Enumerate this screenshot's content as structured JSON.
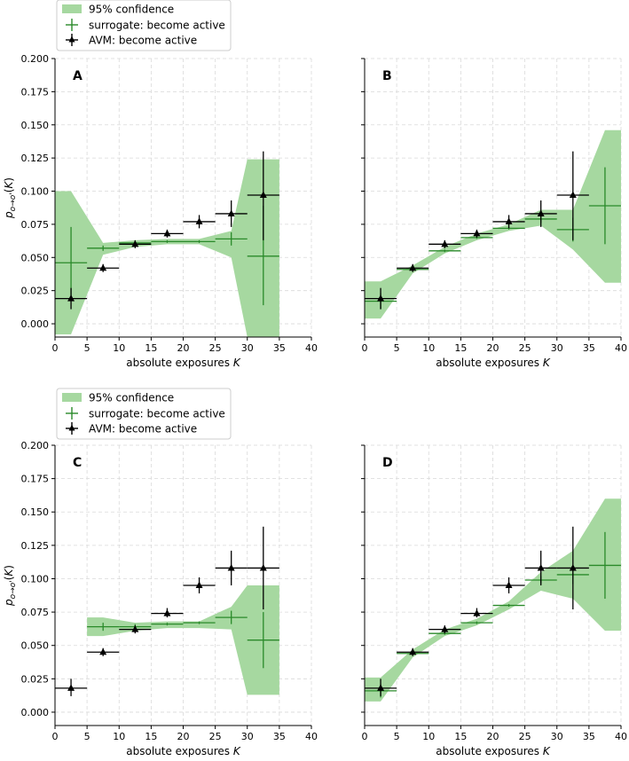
{
  "legend": {
    "confidence_label": "95% confidence",
    "surrogate_label": "surrogate: become active",
    "avm_label": "AVM: become active"
  },
  "colors": {
    "band": "#a6d8a0",
    "surrogate": "#2a8a2a",
    "avm": "#000000",
    "grid": "#d9d9d9"
  },
  "chart_data": [
    {
      "id": "A",
      "panel_label": "A",
      "type": "scatter",
      "xlabel": "absolute exposures K",
      "ylabel": "p_{o→o'}(K)",
      "xlim": [
        0,
        40
      ],
      "ylim": [
        -0.01,
        0.2
      ],
      "xticks": [
        0,
        5,
        10,
        15,
        20,
        25,
        30,
        35,
        40
      ],
      "yticks": [
        0.0,
        0.025,
        0.05,
        0.075,
        0.1,
        0.125,
        0.15,
        0.175,
        0.2
      ],
      "ytick_labels": [
        "0.000",
        "0.025",
        "0.050",
        "0.075",
        "0.100",
        "0.125",
        "0.150",
        "0.175",
        "0.200"
      ],
      "show_y_ticklabels": true,
      "has_legend": true,
      "band": [
        {
          "x": 0,
          "lo": -0.008,
          "hi": 0.1
        },
        {
          "x": 2.5,
          "lo": -0.008,
          "hi": 0.1
        },
        {
          "x": 7.5,
          "lo": 0.052,
          "hi": 0.061
        },
        {
          "x": 12.5,
          "lo": 0.058,
          "hi": 0.063
        },
        {
          "x": 17.5,
          "lo": 0.06,
          "hi": 0.064
        },
        {
          "x": 22.5,
          "lo": 0.06,
          "hi": 0.064
        },
        {
          "x": 27.5,
          "lo": 0.05,
          "hi": 0.07
        },
        {
          "x": 30,
          "lo": -0.01,
          "hi": 0.124
        },
        {
          "x": 35,
          "lo": -0.01,
          "hi": 0.124
        }
      ],
      "surrogate": [
        {
          "x": 2.5,
          "y": 0.046,
          "xerr": 2.5,
          "lo": 0.018,
          "hi": 0.073
        },
        {
          "x": 7.5,
          "y": 0.057,
          "xerr": 2.5,
          "lo": 0.055,
          "hi": 0.059
        },
        {
          "x": 12.5,
          "y": 0.061,
          "xerr": 2.5,
          "lo": 0.06,
          "hi": 0.062
        },
        {
          "x": 17.5,
          "y": 0.062,
          "xerr": 2.5,
          "lo": 0.061,
          "hi": 0.063
        },
        {
          "x": 22.5,
          "y": 0.062,
          "xerr": 2.5,
          "lo": 0.061,
          "hi": 0.063
        },
        {
          "x": 27.5,
          "y": 0.064,
          "xerr": 2.5,
          "lo": 0.059,
          "hi": 0.069
        },
        {
          "x": 32.5,
          "y": 0.051,
          "xerr": 2.5,
          "lo": 0.014,
          "hi": 0.089
        }
      ],
      "avm": [
        {
          "x": 2.5,
          "y": 0.019,
          "xerr": 2.5,
          "lo": 0.011,
          "hi": 0.027
        },
        {
          "x": 7.5,
          "y": 0.042,
          "xerr": 2.5,
          "lo": 0.039,
          "hi": 0.045
        },
        {
          "x": 12.5,
          "y": 0.06,
          "xerr": 2.5,
          "lo": 0.057,
          "hi": 0.063
        },
        {
          "x": 17.5,
          "y": 0.068,
          "xerr": 2.5,
          "lo": 0.065,
          "hi": 0.071
        },
        {
          "x": 22.5,
          "y": 0.077,
          "xerr": 2.5,
          "lo": 0.072,
          "hi": 0.082
        },
        {
          "x": 27.5,
          "y": 0.083,
          "xerr": 2.5,
          "lo": 0.073,
          "hi": 0.093
        },
        {
          "x": 32.5,
          "y": 0.097,
          "xerr": 2.5,
          "lo": 0.063,
          "hi": 0.13
        }
      ]
    },
    {
      "id": "B",
      "panel_label": "B",
      "type": "scatter",
      "xlabel": "absolute exposures K",
      "ylabel": "",
      "xlim": [
        0,
        40
      ],
      "ylim": [
        -0.01,
        0.2
      ],
      "xticks": [
        0,
        5,
        10,
        15,
        20,
        25,
        30,
        35,
        40
      ],
      "yticks": [
        0.0,
        0.025,
        0.05,
        0.075,
        0.1,
        0.125,
        0.15,
        0.175,
        0.2
      ],
      "ytick_labels": [],
      "show_y_ticklabels": false,
      "has_legend": false,
      "band": [
        {
          "x": 0,
          "lo": 0.004,
          "hi": 0.032
        },
        {
          "x": 2.5,
          "lo": 0.004,
          "hi": 0.032
        },
        {
          "x": 7.5,
          "lo": 0.038,
          "hi": 0.044
        },
        {
          "x": 12.5,
          "lo": 0.053,
          "hi": 0.058
        },
        {
          "x": 17.5,
          "lo": 0.063,
          "hi": 0.068
        },
        {
          "x": 22.5,
          "lo": 0.07,
          "hi": 0.075
        },
        {
          "x": 27.5,
          "lo": 0.074,
          "hi": 0.086
        },
        {
          "x": 32.5,
          "lo": 0.056,
          "hi": 0.086
        },
        {
          "x": 37.5,
          "lo": 0.031,
          "hi": 0.146
        },
        {
          "x": 40,
          "lo": 0.031,
          "hi": 0.146
        }
      ],
      "surrogate": [
        {
          "x": 2.5,
          "y": 0.017,
          "xerr": 2.5,
          "lo": 0.011,
          "hi": 0.023
        },
        {
          "x": 7.5,
          "y": 0.041,
          "xerr": 2.5,
          "lo": 0.04,
          "hi": 0.042
        },
        {
          "x": 12.5,
          "y": 0.055,
          "xerr": 2.5,
          "lo": 0.054,
          "hi": 0.056
        },
        {
          "x": 17.5,
          "y": 0.065,
          "xerr": 2.5,
          "lo": 0.064,
          "hi": 0.066
        },
        {
          "x": 22.5,
          "y": 0.072,
          "xerr": 2.5,
          "lo": 0.071,
          "hi": 0.073
        },
        {
          "x": 27.5,
          "y": 0.079,
          "xerr": 2.5,
          "lo": 0.076,
          "hi": 0.082
        },
        {
          "x": 32.5,
          "y": 0.071,
          "xerr": 2.5,
          "lo": 0.062,
          "hi": 0.08
        },
        {
          "x": 37.5,
          "y": 0.089,
          "xerr": 2.5,
          "lo": 0.06,
          "hi": 0.118
        }
      ],
      "avm": [
        {
          "x": 2.5,
          "y": 0.019,
          "xerr": 2.5,
          "lo": 0.011,
          "hi": 0.027
        },
        {
          "x": 7.5,
          "y": 0.042,
          "xerr": 2.5,
          "lo": 0.039,
          "hi": 0.045
        },
        {
          "x": 12.5,
          "y": 0.06,
          "xerr": 2.5,
          "lo": 0.057,
          "hi": 0.063
        },
        {
          "x": 17.5,
          "y": 0.068,
          "xerr": 2.5,
          "lo": 0.065,
          "hi": 0.071
        },
        {
          "x": 22.5,
          "y": 0.077,
          "xerr": 2.5,
          "lo": 0.072,
          "hi": 0.082
        },
        {
          "x": 27.5,
          "y": 0.083,
          "xerr": 2.5,
          "lo": 0.073,
          "hi": 0.093
        },
        {
          "x": 32.5,
          "y": 0.097,
          "xerr": 2.5,
          "lo": 0.063,
          "hi": 0.13
        }
      ]
    },
    {
      "id": "C",
      "panel_label": "C",
      "type": "scatter",
      "xlabel": "absolute exposures K",
      "ylabel": "p_{o→o'}(K)",
      "xlim": [
        0,
        40
      ],
      "ylim": [
        -0.01,
        0.2
      ],
      "xticks": [
        0,
        5,
        10,
        15,
        20,
        25,
        30,
        35,
        40
      ],
      "yticks": [
        0.0,
        0.025,
        0.05,
        0.075,
        0.1,
        0.125,
        0.15,
        0.175,
        0.2
      ],
      "ytick_labels": [
        "0.000",
        "0.025",
        "0.050",
        "0.075",
        "0.100",
        "0.125",
        "0.150",
        "0.175",
        "0.200"
      ],
      "show_y_ticklabels": true,
      "has_legend": true,
      "band": [
        {
          "x": 5,
          "lo": 0.057,
          "hi": 0.071
        },
        {
          "x": 7.5,
          "lo": 0.057,
          "hi": 0.071
        },
        {
          "x": 12.5,
          "lo": 0.061,
          "hi": 0.067
        },
        {
          "x": 17.5,
          "lo": 0.063,
          "hi": 0.068
        },
        {
          "x": 22.5,
          "lo": 0.063,
          "hi": 0.068
        },
        {
          "x": 27.5,
          "lo": 0.062,
          "hi": 0.079
        },
        {
          "x": 30,
          "lo": 0.013,
          "hi": 0.095
        },
        {
          "x": 35,
          "lo": 0.013,
          "hi": 0.095
        }
      ],
      "surrogate": [
        {
          "x": 7.5,
          "y": 0.064,
          "xerr": 2.5,
          "lo": 0.061,
          "hi": 0.067
        },
        {
          "x": 12.5,
          "y": 0.064,
          "xerr": 2.5,
          "lo": 0.062,
          "hi": 0.066
        },
        {
          "x": 17.5,
          "y": 0.066,
          "xerr": 2.5,
          "lo": 0.065,
          "hi": 0.067
        },
        {
          "x": 22.5,
          "y": 0.067,
          "xerr": 2.5,
          "lo": 0.066,
          "hi": 0.068
        },
        {
          "x": 27.5,
          "y": 0.071,
          "xerr": 2.5,
          "lo": 0.066,
          "hi": 0.076
        },
        {
          "x": 32.5,
          "y": 0.054,
          "xerr": 2.5,
          "lo": 0.033,
          "hi": 0.075
        }
      ],
      "avm": [
        {
          "x": 2.5,
          "y": 0.018,
          "xerr": 2.5,
          "lo": 0.012,
          "hi": 0.025
        },
        {
          "x": 7.5,
          "y": 0.045,
          "xerr": 2.5,
          "lo": 0.042,
          "hi": 0.048
        },
        {
          "x": 12.5,
          "y": 0.062,
          "xerr": 2.5,
          "lo": 0.059,
          "hi": 0.065
        },
        {
          "x": 17.5,
          "y": 0.074,
          "xerr": 2.5,
          "lo": 0.071,
          "hi": 0.078
        },
        {
          "x": 22.5,
          "y": 0.095,
          "xerr": 2.5,
          "lo": 0.089,
          "hi": 0.101
        },
        {
          "x": 27.5,
          "y": 0.108,
          "xerr": 2.5,
          "lo": 0.095,
          "hi": 0.121
        },
        {
          "x": 32.5,
          "y": 0.108,
          "xerr": 2.5,
          "lo": 0.077,
          "hi": 0.139
        }
      ]
    },
    {
      "id": "D",
      "panel_label": "D",
      "type": "scatter",
      "xlabel": "absolute exposures K",
      "ylabel": "",
      "xlim": [
        0,
        40
      ],
      "ylim": [
        -0.01,
        0.2
      ],
      "xticks": [
        0,
        5,
        10,
        15,
        20,
        25,
        30,
        35,
        40
      ],
      "yticks": [
        0.0,
        0.025,
        0.05,
        0.075,
        0.1,
        0.125,
        0.15,
        0.175,
        0.2
      ],
      "ytick_labels": [],
      "show_y_ticklabels": false,
      "has_legend": false,
      "band": [
        {
          "x": 0,
          "lo": 0.008,
          "hi": 0.026
        },
        {
          "x": 2.5,
          "lo": 0.008,
          "hi": 0.026
        },
        {
          "x": 7.5,
          "lo": 0.041,
          "hi": 0.047
        },
        {
          "x": 12.5,
          "lo": 0.057,
          "hi": 0.062
        },
        {
          "x": 17.5,
          "lo": 0.065,
          "hi": 0.07
        },
        {
          "x": 22.5,
          "lo": 0.077,
          "hi": 0.083
        },
        {
          "x": 27.5,
          "lo": 0.091,
          "hi": 0.105
        },
        {
          "x": 32.5,
          "lo": 0.085,
          "hi": 0.121
        },
        {
          "x": 37.5,
          "lo": 0.061,
          "hi": 0.16
        },
        {
          "x": 40,
          "lo": 0.061,
          "hi": 0.16
        }
      ],
      "surrogate": [
        {
          "x": 2.5,
          "y": 0.016,
          "xerr": 2.5,
          "lo": 0.011,
          "hi": 0.021
        },
        {
          "x": 7.5,
          "y": 0.044,
          "xerr": 2.5,
          "lo": 0.043,
          "hi": 0.045
        },
        {
          "x": 12.5,
          "y": 0.059,
          "xerr": 2.5,
          "lo": 0.058,
          "hi": 0.06
        },
        {
          "x": 17.5,
          "y": 0.067,
          "xerr": 2.5,
          "lo": 0.066,
          "hi": 0.068
        },
        {
          "x": 22.5,
          "y": 0.08,
          "xerr": 2.5,
          "lo": 0.079,
          "hi": 0.081
        },
        {
          "x": 27.5,
          "y": 0.099,
          "xerr": 2.5,
          "lo": 0.096,
          "hi": 0.102
        },
        {
          "x": 32.5,
          "y": 0.103,
          "xerr": 2.5,
          "lo": 0.096,
          "hi": 0.11
        },
        {
          "x": 37.5,
          "y": 0.11,
          "xerr": 2.5,
          "lo": 0.085,
          "hi": 0.135
        }
      ],
      "avm": [
        {
          "x": 2.5,
          "y": 0.018,
          "xerr": 2.5,
          "lo": 0.012,
          "hi": 0.025
        },
        {
          "x": 7.5,
          "y": 0.045,
          "xerr": 2.5,
          "lo": 0.042,
          "hi": 0.048
        },
        {
          "x": 12.5,
          "y": 0.062,
          "xerr": 2.5,
          "lo": 0.059,
          "hi": 0.065
        },
        {
          "x": 17.5,
          "y": 0.074,
          "xerr": 2.5,
          "lo": 0.071,
          "hi": 0.078
        },
        {
          "x": 22.5,
          "y": 0.095,
          "xerr": 2.5,
          "lo": 0.089,
          "hi": 0.101
        },
        {
          "x": 27.5,
          "y": 0.108,
          "xerr": 2.5,
          "lo": 0.095,
          "hi": 0.121
        },
        {
          "x": 32.5,
          "y": 0.108,
          "xerr": 2.5,
          "lo": 0.077,
          "hi": 0.139
        }
      ]
    }
  ]
}
